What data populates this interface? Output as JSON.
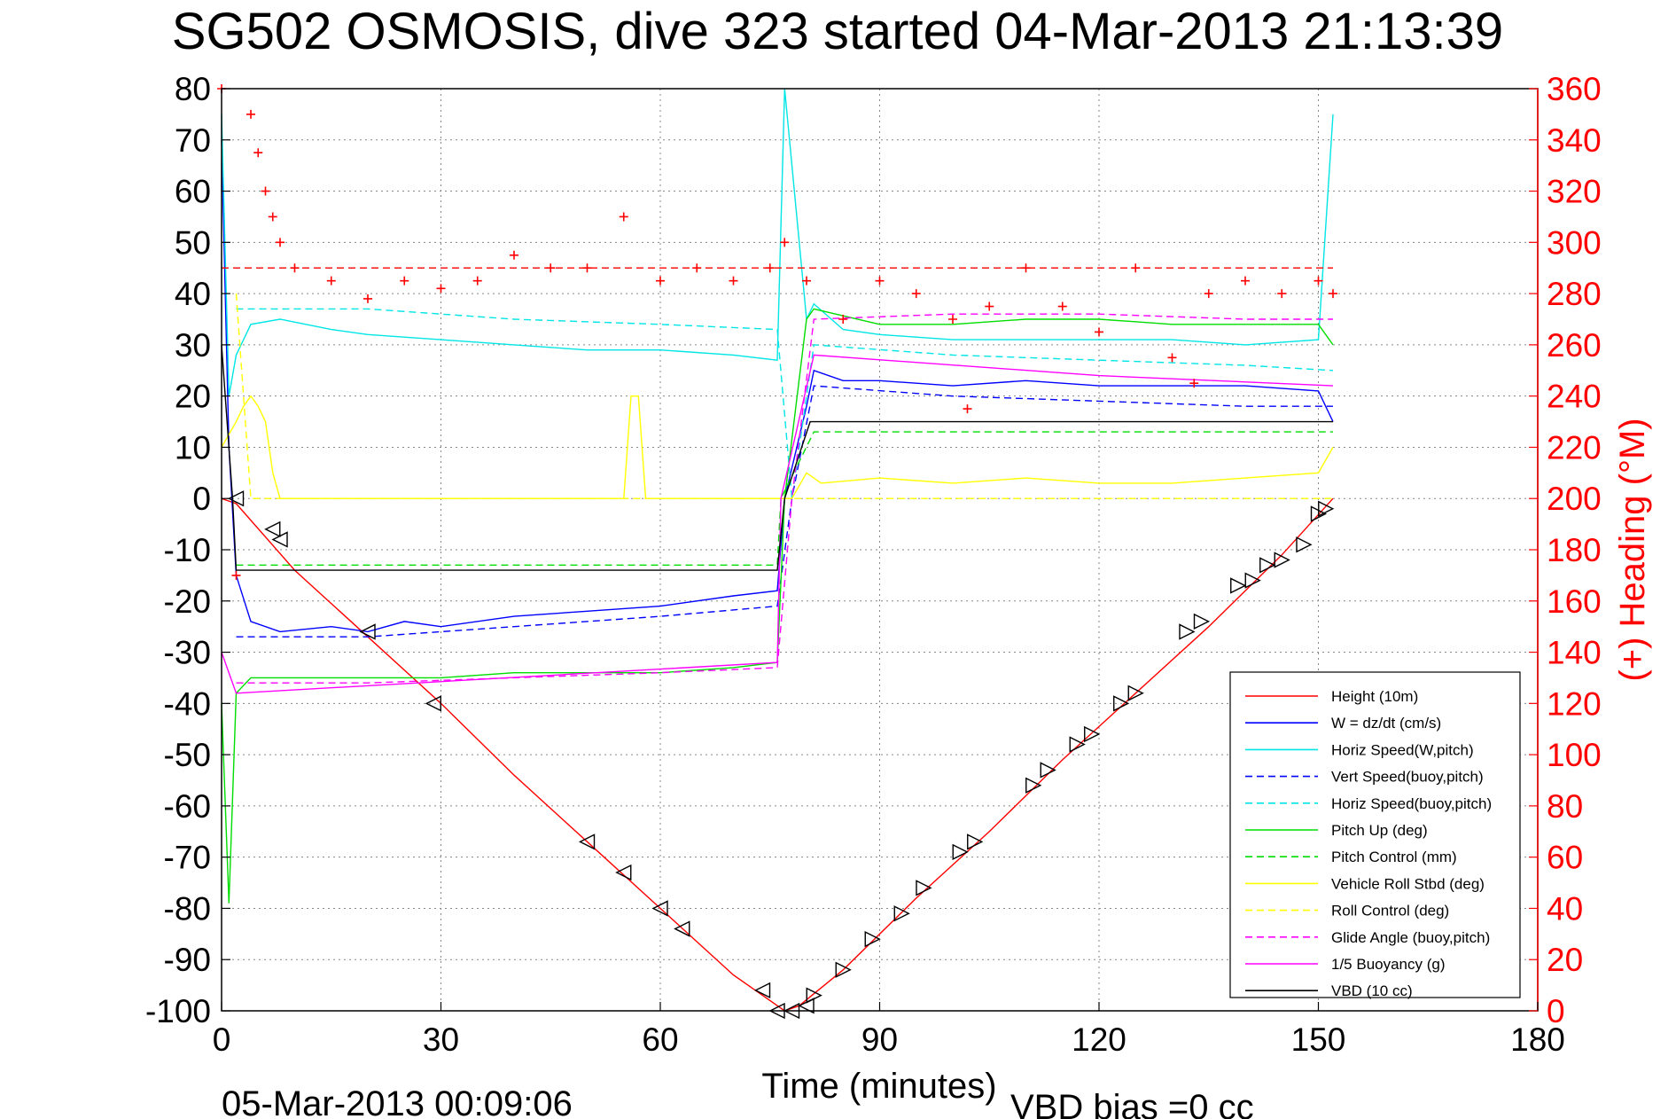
{
  "chart_data": {
    "type": "line",
    "title": "SG502 OSMOSIS, dive 323 started 04-Mar-2013 21:13:39",
    "xlabel": "Time (minutes)",
    "ylabel": "",
    "y2label": "(+) Heading (°M)",
    "xlim": [
      0,
      180
    ],
    "ylim": [
      -100,
      80
    ],
    "y2lim": [
      0,
      360
    ],
    "x_ticks": [
      "0",
      "30",
      "60",
      "90",
      "120",
      "150",
      "180"
    ],
    "y_ticks": [
      "80",
      "70",
      "60",
      "50",
      "40",
      "30",
      "20",
      "10",
      "0",
      "-10",
      "-20",
      "-30",
      "-40",
      "-50",
      "-60",
      "-70",
      "-80",
      "-90",
      "-100"
    ],
    "y2_ticks": [
      "360",
      "340",
      "320",
      "300",
      "280",
      "260",
      "240",
      "220",
      "200",
      "180",
      "160",
      "140",
      "120",
      "100",
      "80",
      "60",
      "40",
      "20",
      "0"
    ],
    "grid": true,
    "legend_position": "bottom-right",
    "footer_time": "05-Mar-2013 00:09:06",
    "footer_bias": "VBD bias =0 cc",
    "series": [
      {
        "name": "Height (10m)",
        "color": "#ff0000",
        "style": "solid",
        "x": [
          0,
          2,
          10,
          20,
          30,
          40,
          50,
          60,
          70,
          77,
          79,
          85,
          95,
          105,
          115,
          125,
          135,
          145,
          152
        ],
        "y": [
          0,
          -1,
          -14,
          -27,
          -40,
          -54,
          -67,
          -80,
          -93,
          -100,
          -99,
          -92,
          -78,
          -65,
          -51,
          -38,
          -25,
          -11,
          0
        ]
      },
      {
        "name": "W = dz/dt (cm/s)",
        "color": "#0000ff",
        "style": "solid",
        "x": [
          0,
          1,
          2,
          4,
          8,
          15,
          20,
          25,
          30,
          40,
          50,
          60,
          70,
          76,
          77,
          80,
          81,
          85,
          90,
          100,
          110,
          120,
          130,
          140,
          150,
          152
        ],
        "y": [
          70,
          10,
          -15,
          -24,
          -26,
          -25,
          -26,
          -24,
          -25,
          -23,
          -22,
          -21,
          -19,
          -18,
          0,
          18,
          25,
          23,
          23,
          22,
          23,
          22,
          22,
          22,
          21,
          15
        ]
      },
      {
        "name": "Horiz Speed(W,pitch)",
        "color": "#00e5e5",
        "style": "solid",
        "x": [
          0,
          1,
          2,
          4,
          8,
          15,
          20,
          30,
          40,
          50,
          60,
          70,
          76,
          77,
          80,
          81,
          85,
          90,
          100,
          110,
          120,
          130,
          140,
          150,
          152
        ],
        "y": [
          75,
          20,
          28,
          34,
          35,
          33,
          32,
          31,
          30,
          29,
          29,
          28,
          27,
          80,
          35,
          38,
          33,
          32,
          31,
          31,
          31,
          31,
          30,
          31,
          75
        ]
      },
      {
        "name": "Vert Speed(buoy,pitch)",
        "color": "#0000ff",
        "style": "dashed",
        "x": [
          2,
          20,
          40,
          60,
          76,
          78,
          81,
          100,
          120,
          140,
          152
        ],
        "y": [
          -27,
          -27,
          -25,
          -23,
          -21,
          0,
          22,
          20,
          19,
          18,
          18
        ]
      },
      {
        "name": "Horiz Speed(buoy,pitch)",
        "color": "#00e5e5",
        "style": "dashed",
        "x": [
          2,
          20,
          40,
          60,
          76,
          78,
          81,
          100,
          120,
          140,
          152
        ],
        "y": [
          37,
          37,
          35,
          34,
          33,
          0,
          30,
          28,
          27,
          26,
          25
        ]
      },
      {
        "name": "Pitch Up (deg)",
        "color": "#00dd00",
        "style": "solid",
        "x": [
          0,
          1,
          2,
          4,
          8,
          20,
          30,
          40,
          50,
          60,
          70,
          76,
          77,
          80,
          81,
          90,
          100,
          110,
          120,
          130,
          140,
          150,
          152
        ],
        "y": [
          -40,
          -79,
          -38,
          -35,
          -35,
          -35,
          -35,
          -34,
          -34,
          -34,
          -33,
          -32,
          0,
          35,
          37,
          34,
          34,
          35,
          35,
          34,
          34,
          34,
          30
        ]
      },
      {
        "name": "Pitch Control (mm)",
        "color": "#00dd00",
        "style": "dashed",
        "x": [
          2,
          76,
          76.5,
          81,
          152
        ],
        "y": [
          -13,
          -13,
          0,
          13,
          13
        ]
      },
      {
        "name": "Vehicle Roll Stbd (deg)",
        "color": "#ffff00",
        "style": "solid",
        "x": [
          0,
          2,
          3,
          4,
          5,
          6,
          7,
          8,
          9,
          20,
          30,
          40,
          50,
          55,
          56,
          57,
          58,
          70,
          76,
          78,
          80,
          82,
          90,
          100,
          110,
          120,
          130,
          140,
          150,
          152
        ],
        "y": [
          10,
          15,
          18,
          20,
          18,
          15,
          5,
          0,
          0,
          0,
          0,
          0,
          0,
          0,
          20,
          20,
          0,
          0,
          0,
          0,
          5,
          3,
          4,
          3,
          4,
          3,
          3,
          4,
          5,
          10
        ]
      },
      {
        "name": "Roll Control (deg)",
        "color": "#ffff00",
        "style": "dashed",
        "x": [
          2,
          4,
          8,
          30,
          60,
          76,
          81,
          100,
          120,
          152
        ],
        "y": [
          40,
          0,
          0,
          0,
          0,
          0,
          0,
          0,
          0,
          0
        ]
      },
      {
        "name": "Glide Angle (buoy,pitch)",
        "color": "#ff00ff",
        "style": "dashed",
        "x": [
          2,
          20,
          40,
          60,
          76,
          78,
          81,
          100,
          120,
          140,
          152
        ],
        "y": [
          -36,
          -36,
          -35,
          -34,
          -33,
          0,
          35,
          36,
          36,
          35,
          35
        ]
      },
      {
        "name": "1/5 Buoyancy (g)",
        "color": "#ff00ff",
        "style": "solid",
        "x": [
          0,
          2,
          76,
          76.5,
          81,
          120,
          152
        ],
        "y": [
          -30,
          -38,
          -32,
          0,
          28,
          24,
          22
        ]
      },
      {
        "name": "VBD (10 cc)",
        "color": "#000000",
        "style": "solid",
        "x": [
          0,
          1.5,
          2,
          76,
          77,
          80.5,
          152
        ],
        "y": [
          30,
          0,
          -14,
          -14,
          0,
          15,
          15
        ]
      },
      {
        "name": "Heading",
        "color": "#ff0000",
        "style": "markers-plus",
        "axis": "right",
        "x": [
          0,
          2,
          4,
          5,
          6,
          7,
          8,
          10,
          15,
          20,
          25,
          30,
          35,
          40,
          45,
          50,
          55,
          60,
          65,
          70,
          75,
          77,
          80,
          85,
          90,
          95,
          100,
          102,
          105,
          110,
          115,
          120,
          125,
          130,
          133,
          135,
          140,
          145,
          150,
          152
        ],
        "y": [
          360,
          170,
          350,
          335,
          320,
          310,
          300,
          290,
          285,
          278,
          285,
          282,
          285,
          295,
          290,
          290,
          310,
          285,
          290,
          285,
          290,
          300,
          285,
          270,
          285,
          280,
          270,
          235,
          275,
          290,
          275,
          265,
          290,
          255,
          245,
          280,
          285,
          280,
          285,
          280
        ]
      },
      {
        "name": "Heading reference",
        "color": "#ff0000",
        "style": "dashed",
        "axis": "right",
        "x": [
          0,
          152
        ],
        "y": [
          290,
          290
        ]
      }
    ],
    "depth_markers": {
      "down": [
        [
          2,
          0
        ],
        [
          7,
          -6
        ],
        [
          8,
          -8
        ],
        [
          20,
          -26
        ],
        [
          29,
          -40
        ],
        [
          50,
          -67
        ],
        [
          55,
          -73
        ],
        [
          60,
          -80
        ],
        [
          63,
          -84
        ],
        [
          74,
          -96
        ],
        [
          76,
          -100
        ],
        [
          78,
          -100
        ],
        [
          80,
          -99
        ]
      ],
      "up": [
        [
          81,
          -97
        ],
        [
          85,
          -92
        ],
        [
          89,
          -86
        ],
        [
          93,
          -81
        ],
        [
          96,
          -76
        ],
        [
          101,
          -69
        ],
        [
          103,
          -67
        ],
        [
          111,
          -56
        ],
        [
          113,
          -53
        ],
        [
          117,
          -48
        ],
        [
          119,
          -46
        ],
        [
          123,
          -40
        ],
        [
          125,
          -38
        ],
        [
          132,
          -26
        ],
        [
          134,
          -24
        ],
        [
          139,
          -17
        ],
        [
          141,
          -16
        ],
        [
          143,
          -13
        ],
        [
          145,
          -12
        ],
        [
          148,
          -9
        ],
        [
          150,
          -3
        ],
        [
          151,
          -2
        ]
      ]
    }
  }
}
